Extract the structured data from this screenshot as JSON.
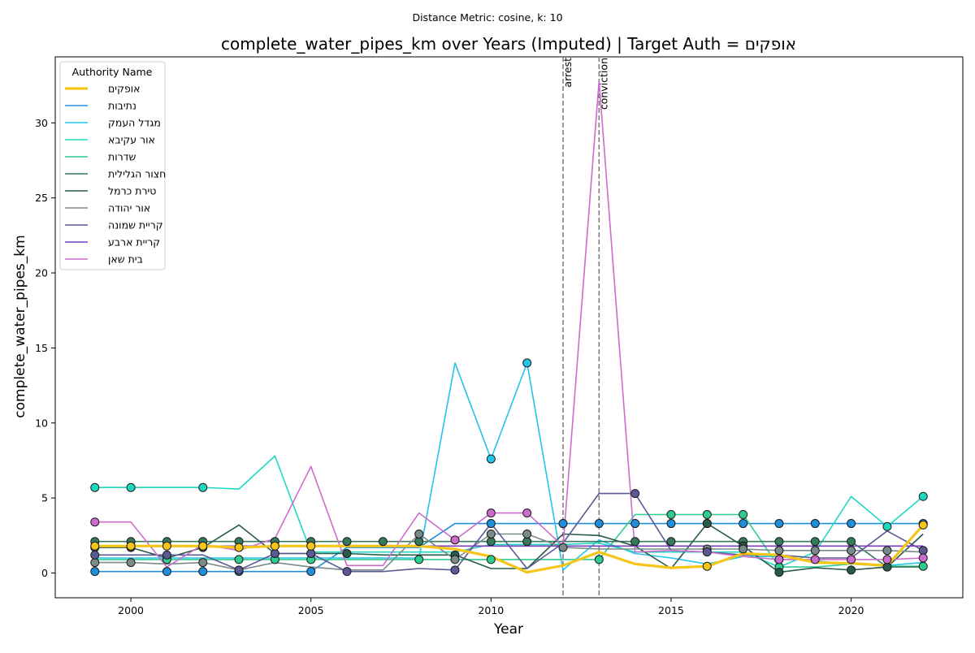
{
  "chart_data": {
    "type": "line",
    "suptitle": "Distance Metric: cosine, k: 10",
    "title": "complete_water_pipes_km over Years (Imputed) | Target Auth = אופקים",
    "xlabel": "Year",
    "ylabel": "complete_water_pipes_km",
    "xlim": [
      1997.9,
      2023.1
    ],
    "ylim": [
      -1.65,
      34.4
    ],
    "xticks": [
      2000,
      2005,
      2010,
      2015,
      2020
    ],
    "yticks": [
      0,
      5,
      10,
      15,
      20,
      25,
      30
    ],
    "legend": {
      "title": "Authority Name",
      "placement": "top-left"
    },
    "vlines": [
      {
        "x": 2012,
        "label": "arrest"
      },
      {
        "x": 2013,
        "label": "conviction"
      }
    ],
    "x": [
      1999,
      2000,
      2001,
      2002,
      2003,
      2004,
      2005,
      2006,
      2007,
      2008,
      2009,
      2010,
      2011,
      2012,
      2013,
      2014,
      2015,
      2016,
      2017,
      2018,
      2019,
      2020,
      2021,
      2022
    ],
    "series": [
      {
        "name": "אופקים",
        "color": "#f5c518",
        "target": true,
        "values": [
          1.8,
          1.8,
          1.8,
          1.8,
          1.7,
          1.8,
          1.8,
          1.8,
          1.8,
          1.8,
          1.6,
          1.1,
          0.05,
          0.5,
          1.4,
          0.6,
          0.35,
          0.45,
          1.3,
          1.2,
          0.7,
          0.65,
          0.5,
          3.2
        ],
        "markers": [
          1999,
          2000,
          2001,
          2002,
          2003,
          2004,
          2005,
          2016,
          2022
        ]
      },
      {
        "name": "נתיבות",
        "color": "#1f8fdb",
        "values": [
          0.1,
          0.1,
          0.1,
          0.1,
          0.1,
          0.1,
          0.1,
          1.7,
          1.7,
          1.7,
          3.3,
          3.3,
          3.3,
          3.3,
          3.3,
          3.3,
          3.3,
          3.3,
          3.3,
          3.3,
          3.3,
          3.3,
          3.3,
          3.3
        ],
        "markers": [
          1999,
          2001,
          2002,
          2003,
          2005,
          2010,
          2012,
          2013,
          2014,
          2015,
          2016,
          2017,
          2018,
          2019,
          2020,
          2022
        ]
      },
      {
        "name": "מגדל העמק",
        "color": "#22c4e8",
        "values": [
          1.0,
          1.0,
          1.0,
          1.0,
          1.0,
          1.0,
          1.0,
          1.0,
          1.0,
          1.0,
          14.0,
          7.6,
          14.0,
          0.2,
          2.2,
          1.3,
          1.0,
          0.6,
          1.1,
          1.1,
          0.8,
          0.6,
          0.5,
          0.7
        ],
        "markers": [
          2010,
          2011
        ]
      },
      {
        "name": "אור עקיבא",
        "color": "#1fd8c0",
        "values": [
          5.7,
          5.7,
          5.7,
          5.7,
          5.6,
          7.8,
          1.4,
          1.4,
          1.4,
          1.4,
          1.4,
          1.9,
          1.9,
          1.9,
          2.0,
          1.4,
          1.4,
          1.4,
          1.4,
          0.4,
          1.4,
          5.1,
          3.1,
          5.1
        ],
        "markers": [
          1999,
          2000,
          2002,
          2021,
          2022
        ]
      },
      {
        "name": "שדרות",
        "color": "#2ecc8e",
        "values": [
          0.9,
          0.9,
          0.9,
          0.9,
          0.9,
          0.9,
          0.9,
          0.9,
          0.9,
          0.9,
          0.9,
          0.9,
          0.9,
          0.9,
          0.9,
          3.9,
          3.9,
          3.9,
          3.9,
          0.4,
          0.4,
          0.6,
          0.45,
          0.45
        ],
        "markers": [
          2001,
          2003,
          2004,
          2005,
          2008,
          2010,
          2013,
          2015,
          2016,
          2017,
          2018,
          2022
        ]
      },
      {
        "name": "חצור הגלילית",
        "color": "#357a5c",
        "values": [
          2.1,
          2.1,
          2.1,
          2.1,
          2.1,
          2.1,
          2.1,
          2.1,
          2.1,
          2.1,
          2.1,
          2.1,
          2.1,
          2.1,
          2.1,
          2.1,
          2.1,
          2.1,
          2.1,
          2.1,
          2.1,
          2.1,
          0.4,
          0.4
        ],
        "markers": [
          1999,
          2000,
          2001,
          2002,
          2003,
          2004,
          2005,
          2006,
          2007,
          2008,
          2010,
          2011,
          2014,
          2015,
          2017,
          2018,
          2019,
          2020,
          2021
        ]
      },
      {
        "name": "טירת כרמל",
        "color": "#2a5a48",
        "values": [
          1.7,
          1.7,
          1.0,
          1.7,
          3.2,
          1.3,
          1.3,
          1.3,
          1.2,
          1.2,
          1.2,
          0.3,
          0.3,
          2.6,
          2.5,
          1.8,
          0.3,
          3.3,
          1.8,
          0.05,
          0.35,
          0.2,
          0.4,
          2.6
        ],
        "markers": [
          1999,
          2000,
          2002,
          2005,
          2006,
          2009,
          2016,
          2017,
          2018,
          2020,
          2021
        ]
      },
      {
        "name": "אור יהודה",
        "color": "#7a8a88",
        "values": [
          0.7,
          0.7,
          0.6,
          0.7,
          0.2,
          0.7,
          0.4,
          0.2,
          0.2,
          2.6,
          0.9,
          2.6,
          2.6,
          1.7,
          1.6,
          1.6,
          1.6,
          1.6,
          1.6,
          1.5,
          1.5,
          1.5,
          1.5,
          1.4
        ],
        "markers": [
          1999,
          2000,
          2002,
          2008,
          2009,
          2010,
          2011,
          2012,
          2016,
          2017,
          2018,
          2019,
          2020,
          2021
        ]
      },
      {
        "name": "קריית שמונה",
        "color": "#5a5a96",
        "values": [
          1.2,
          1.2,
          1.2,
          1.2,
          0.2,
          1.3,
          1.3,
          0.1,
          0.1,
          0.3,
          0.2,
          3.3,
          0.3,
          2.0,
          5.3,
          5.3,
          1.5,
          1.4,
          1.2,
          1.2,
          1.0,
          1.0,
          2.8,
          1.5
        ],
        "markers": [
          1999,
          2001,
          2003,
          2004,
          2005,
          2006,
          2009,
          2014,
          2016,
          2022
        ]
      },
      {
        "name": "קריית ארבע",
        "color": "#7b3fbf",
        "values": [
          1.8,
          1.8,
          1.8,
          1.8,
          1.8,
          1.8,
          1.8,
          1.8,
          1.8,
          1.8,
          1.8,
          1.8,
          1.8,
          1.8,
          1.8,
          1.8,
          1.8,
          1.8,
          1.8,
          1.8,
          1.8,
          1.8,
          1.8,
          1.8
        ],
        "markers": []
      },
      {
        "name": "בית שאן",
        "color": "#cc6ccc",
        "values": [
          3.4,
          3.4,
          0.4,
          1.9,
          1.5,
          2.3,
          7.1,
          0.5,
          0.5,
          4.0,
          2.2,
          4.0,
          4.0,
          1.8,
          32.8,
          1.4,
          1.5,
          1.4,
          1.1,
          0.9,
          0.9,
          0.9,
          0.9,
          1.0
        ],
        "markers": [
          1999,
          2009,
          2010,
          2011,
          2018,
          2019,
          2020,
          2021,
          2022
        ]
      }
    ]
  }
}
